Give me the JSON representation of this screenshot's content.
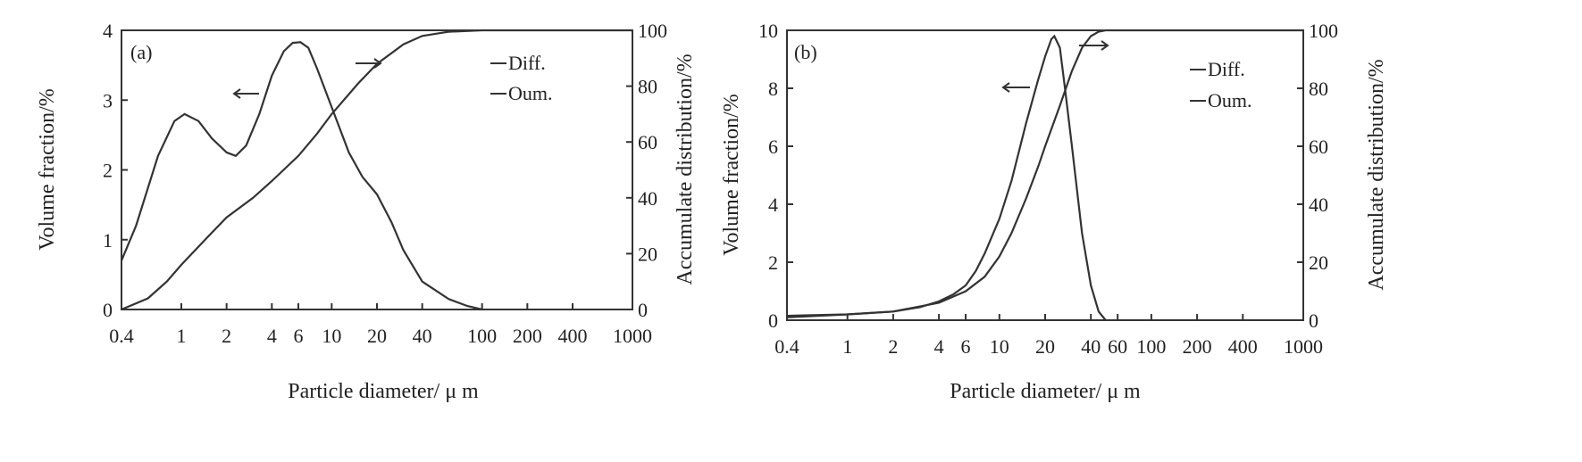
{
  "figure": {
    "panels": [
      {
        "tag": "(a)",
        "legend": [
          "Diff.",
          "Oum."
        ],
        "xlabel": "Particle diameter/ μ m",
        "ylabel": "Volume fraction/%",
        "y2label": "Accumulate distribution/%"
      },
      {
        "tag": "(b)",
        "legend": [
          "Diff.",
          "Oum."
        ],
        "xlabel": "Particle diameter/ μ m",
        "ylabel": "Volume fraction/%",
        "y2label": "Accumulate distribution/%"
      }
    ]
  },
  "chart_data": [
    {
      "type": "line",
      "panel": "(a)",
      "x_scale": "log",
      "xlim": [
        0.4,
        1000
      ],
      "ylim": [
        0,
        4
      ],
      "y2lim": [
        0,
        100
      ],
      "x_tick_labels": [
        "0.4",
        "1",
        "2",
        "4",
        "6",
        "10",
        "20",
        "40",
        "100",
        "200",
        "400",
        "1000"
      ],
      "x_tick_values": [
        0.4,
        1,
        2,
        4,
        6,
        10,
        20,
        40,
        100,
        200,
        400,
        1000
      ],
      "y_ticks": [
        "0",
        "1",
        "2",
        "3",
        "4"
      ],
      "y2_ticks": [
        "0",
        "20",
        "40",
        "60",
        "80",
        "100"
      ],
      "xlabel": "Particle diameter/ μ m",
      "ylabel": "Volume fraction/%",
      "y2label": "Accumulate distribution/%",
      "legend": [
        "Diff.",
        "Oum."
      ],
      "series": [
        {
          "name": "Diff.",
          "axis": "left",
          "x": [
            0.4,
            0.5,
            0.7,
            0.9,
            1.05,
            1.3,
            1.6,
            2.0,
            2.3,
            2.7,
            3.3,
            4.0,
            4.8,
            5.5,
            6.2,
            7.0,
            8.0,
            10.0,
            13.0,
            16.0,
            20.0,
            25.0,
            30.0,
            40.0,
            60.0,
            80.0,
            100.0
          ],
          "y": [
            0.7,
            1.2,
            2.2,
            2.7,
            2.8,
            2.7,
            2.45,
            2.25,
            2.2,
            2.35,
            2.8,
            3.35,
            3.7,
            3.82,
            3.83,
            3.75,
            3.45,
            2.9,
            2.25,
            1.9,
            1.65,
            1.25,
            0.85,
            0.4,
            0.15,
            0.05,
            0.0
          ]
        },
        {
          "name": "Oum.",
          "axis": "right",
          "x": [
            0.4,
            0.6,
            0.8,
            1.0,
            1.5,
            2.0,
            3.0,
            4.0,
            6.0,
            8.0,
            10.0,
            15.0,
            20.0,
            30.0,
            40.0,
            60.0,
            100.0,
            200.0,
            1000.0
          ],
          "y": [
            0,
            4,
            10,
            16,
            26,
            33,
            40,
            46,
            55,
            63,
            70,
            81,
            88,
            95,
            98,
            99.5,
            100,
            100,
            100
          ]
        }
      ],
      "annotations": [
        {
          "text": "←",
          "points_to": "Diff."
        },
        {
          "text": "→",
          "points_to": "Oum."
        }
      ]
    },
    {
      "type": "line",
      "panel": "(b)",
      "x_scale": "log",
      "xlim": [
        0.4,
        1000
      ],
      "ylim": [
        0,
        10
      ],
      "y2lim": [
        0,
        100
      ],
      "x_tick_labels": [
        "0.4",
        "1",
        "2",
        "4",
        "6",
        "10",
        "20",
        "40",
        "60",
        "100",
        "200",
        "400",
        "1000"
      ],
      "x_tick_values": [
        0.4,
        1,
        2,
        4,
        6,
        10,
        20,
        40,
        60,
        100,
        200,
        400,
        1000
      ],
      "y_ticks": [
        "0",
        "2",
        "4",
        "6",
        "8",
        "10"
      ],
      "y2_ticks": [
        "0",
        "20",
        "40",
        "60",
        "80",
        "100"
      ],
      "xlabel": "Particle diameter/ μ m",
      "ylabel": "Volume fraction/%",
      "y2label": "Accumulate distribution/%",
      "legend": [
        "Diff.",
        "Oum."
      ],
      "series": [
        {
          "name": "Diff.",
          "axis": "left",
          "x": [
            0.4,
            1.0,
            2.0,
            3.0,
            4.0,
            5.0,
            6.0,
            7.0,
            8.0,
            10.0,
            12.0,
            15.0,
            18.0,
            20.0,
            22.0,
            23.0,
            25.0,
            27.0,
            30.0,
            35.0,
            40.0,
            45.0,
            50.0
          ],
          "y": [
            0.1,
            0.2,
            0.3,
            0.45,
            0.65,
            0.9,
            1.2,
            1.7,
            2.3,
            3.5,
            4.8,
            6.8,
            8.3,
            9.1,
            9.7,
            9.8,
            9.4,
            8.0,
            6.0,
            3.0,
            1.2,
            0.3,
            0.0
          ]
        },
        {
          "name": "Oum.",
          "axis": "right",
          "x": [
            0.4,
            1.0,
            2.0,
            4.0,
            6.0,
            8.0,
            10.0,
            12.0,
            15.0,
            18.0,
            20.0,
            25.0,
            30.0,
            35.0,
            40.0,
            45.0,
            50.0,
            100.0,
            1000.0
          ],
          "y": [
            1.5,
            2,
            3,
            6,
            10,
            15,
            22,
            30,
            42,
            53,
            60,
            74,
            86,
            94,
            98,
            99.5,
            100,
            100,
            100
          ]
        }
      ],
      "annotations": [
        {
          "text": "←",
          "points_to": "Diff."
        },
        {
          "text": "→",
          "points_to": "Oum."
        }
      ]
    }
  ]
}
